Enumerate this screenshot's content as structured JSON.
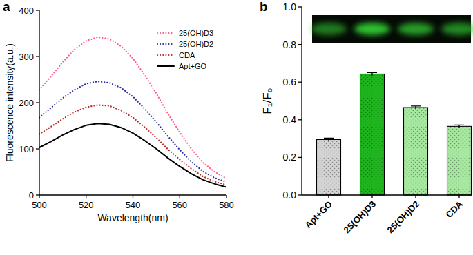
{
  "chart_data": [
    {
      "type": "line",
      "panel_label": "a",
      "x_label": "Wavelength(nm)",
      "y_label": "Fluorescence intensity(a.u.)",
      "x": [
        500,
        505,
        510,
        515,
        520,
        525,
        530,
        535,
        540,
        545,
        550,
        555,
        560,
        565,
        570,
        575,
        580
      ],
      "series": [
        {
          "name": "25(OH)D3",
          "color": "#ff5c8a",
          "line_style": "dotted",
          "values": [
            228,
            257,
            288,
            315,
            334,
            342,
            338,
            322,
            296,
            260,
            220,
            176,
            136,
            100,
            70,
            50,
            36
          ]
        },
        {
          "name": "25(OH)D2",
          "color": "#2b2f9e",
          "line_style": "dotted",
          "values": [
            168,
            189,
            210,
            228,
            241,
            246,
            243,
            232,
            213,
            187,
            158,
            127,
            98,
            72,
            51,
            37,
            28
          ]
        },
        {
          "name": "CDA",
          "color": "#b3302a",
          "line_style": "dotted",
          "values": [
            132,
            148,
            165,
            180,
            190,
            195,
            193,
            183,
            168,
            147,
            124,
            99,
            77,
            57,
            40,
            29,
            22
          ]
        },
        {
          "name": "Apt+GO",
          "color": "#000000",
          "line_style": "solid",
          "values": [
            103,
            116,
            130,
            142,
            151,
            155,
            153,
            146,
            134,
            118,
            100,
            80,
            62,
            46,
            33,
            24,
            17
          ]
        }
      ],
      "xlim": [
        500,
        580
      ],
      "xticks": [
        500,
        520,
        540,
        560,
        580
      ],
      "ylim": [
        0,
        400
      ],
      "yticks": [
        0,
        100,
        200,
        300,
        400
      ],
      "legend": "upper right"
    },
    {
      "type": "bar",
      "panel_label": "b",
      "y_label": "F₁/F₀",
      "categories": [
        "Apt+GO",
        "25(OH)D3",
        "25(OH)D2",
        "CDA"
      ],
      "values": [
        0.295,
        0.643,
        0.465,
        0.365
      ],
      "errors": [
        0.008,
        0.008,
        0.008,
        0.007
      ],
      "colors": [
        "#d3d3d3",
        "#1fb51f",
        "#a6e8a0",
        "#a6e8a0"
      ],
      "ylim": [
        0,
        1
      ],
      "yticks": [
        {
          "value": 0,
          "label": "0.0"
        },
        {
          "value": 0.2,
          "label": "0.2"
        },
        {
          "value": 0.4,
          "label": "0.4"
        },
        {
          "value": 0.6,
          "label": "0.6"
        },
        {
          "value": 0.8,
          "label": "0.8"
        },
        {
          "value": 1,
          "label": "1.0"
        }
      ]
    }
  ]
}
